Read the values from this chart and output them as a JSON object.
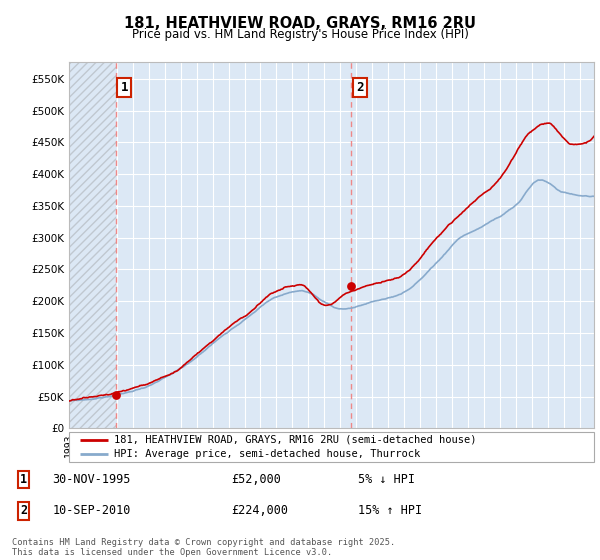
{
  "title": "181, HEATHVIEW ROAD, GRAYS, RM16 2RU",
  "subtitle": "Price paid vs. HM Land Registry's House Price Index (HPI)",
  "legend_line1": "181, HEATHVIEW ROAD, GRAYS, RM16 2RU (semi-detached house)",
  "legend_line2": "HPI: Average price, semi-detached house, Thurrock",
  "footer": "Contains HM Land Registry data © Crown copyright and database right 2025.\nThis data is licensed under the Open Government Licence v3.0.",
  "annotation1_date": "30-NOV-1995",
  "annotation1_price": "£52,000",
  "annotation1_hpi": "5% ↓ HPI",
  "annotation2_date": "10-SEP-2010",
  "annotation2_price": "£224,000",
  "annotation2_hpi": "15% ↑ HPI",
  "price_color": "#cc0000",
  "hpi_color": "#88aacc",
  "dashed_line_color": "#ee8888",
  "bg_color": "#dce8f5",
  "hatch_color": "#c0c8d0",
  "ylim": [
    0,
    577000
  ],
  "yticks": [
    0,
    50000,
    100000,
    150000,
    200000,
    250000,
    300000,
    350000,
    400000,
    450000,
    500000,
    550000
  ],
  "xmin": 1993.0,
  "xmax": 2025.9,
  "sale1_x": 1995.92,
  "sale1_y": 52000,
  "sale2_x": 2010.7,
  "sale2_y": 224000,
  "hpi_key_points_x": [
    1993.0,
    1996.0,
    2000.0,
    2002.0,
    2004.0,
    2006.0,
    2007.5,
    2009.0,
    2010.0,
    2012.0,
    2014.0,
    2016.0,
    2017.5,
    2019.0,
    2021.0,
    2022.5,
    2024.0,
    2025.5
  ],
  "hpi_key_points_y": [
    43000,
    52000,
    90000,
    130000,
    170000,
    205000,
    215000,
    195000,
    185000,
    195000,
    210000,
    255000,
    295000,
    315000,
    345000,
    385000,
    365000,
    360000
  ],
  "price_key_points_x": [
    1993.0,
    1996.0,
    2000.0,
    2002.0,
    2004.5,
    2006.0,
    2007.5,
    2009.0,
    2010.5,
    2011.5,
    2014.0,
    2016.0,
    2018.0,
    2020.0,
    2022.0,
    2023.0,
    2024.5,
    2025.5
  ],
  "price_key_points_y": [
    43000,
    50000,
    90000,
    130000,
    175000,
    205000,
    215000,
    185000,
    205000,
    215000,
    230000,
    285000,
    335000,
    380000,
    455000,
    465000,
    430000,
    435000
  ]
}
